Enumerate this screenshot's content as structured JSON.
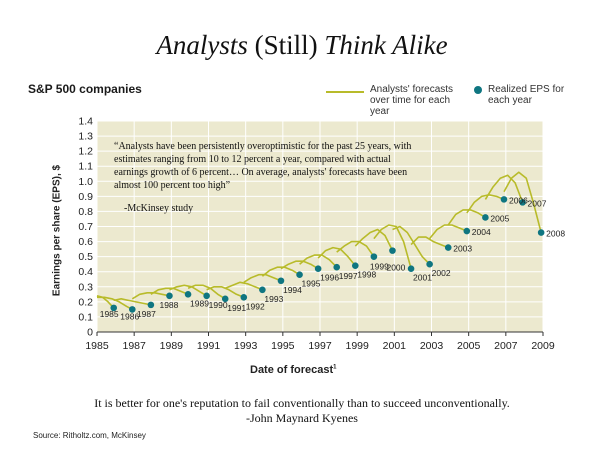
{
  "title": {
    "italic_1": "Analysts",
    "plain": " (Still) ",
    "italic_2": "Think Alike"
  },
  "subtitle": "S&P 500 companies",
  "legend": {
    "line_label": "Analysts' forecasts over time for each year",
    "dot_label": "Realized EPS for each year"
  },
  "quote": "“Analysts have been persistently overoptimistic for the past 25 years, with estimates ranging from 10 to 12 percent a year, compared with actual earnings growth of 6 percent… On average, analysts' forecasts have been almost 100 percent too high”",
  "quote_attribution": "-McKinsey study",
  "bottom_quote": "It is better for one's reputation to fail conventionally than to succeed unconventionally.",
  "bottom_attribution": "-John Maynard Kyenes",
  "source": "Source: Ritholtz.com, McKinsey",
  "chart_data": {
    "type": "line",
    "xlabel": "Date of forecast",
    "xlabel_superscript": "1",
    "ylabel": "Earnings per share (EPS), $",
    "xlim": [
      1985,
      2009
    ],
    "ylim": [
      0,
      1.4
    ],
    "x_ticks": [
      1985,
      1987,
      1989,
      1991,
      1993,
      1995,
      1997,
      1999,
      2001,
      2003,
      2005,
      2007,
      2009
    ],
    "y_ticks": [
      0,
      0.1,
      0.2,
      0.3,
      0.4,
      0.5,
      0.6,
      0.7,
      0.8,
      0.9,
      1.0,
      1.1,
      1.2,
      1.3,
      1.4
    ],
    "colors": {
      "forecast_line": "#b8bb2a",
      "realized_dot": "#0f7681",
      "plot_bg": "#ece9cf",
      "grid": "#ffffff"
    },
    "grid": true,
    "realized_eps": [
      {
        "year": "1985",
        "x": 1985.9,
        "y": 0.16
      },
      {
        "year": "1986",
        "x": 1986.9,
        "y": 0.15
      },
      {
        "year": "1987",
        "x": 1987.9,
        "y": 0.18
      },
      {
        "year": "1988",
        "x": 1988.9,
        "y": 0.24
      },
      {
        "year": "1989",
        "x": 1989.9,
        "y": 0.25
      },
      {
        "year": "1990",
        "x": 1990.9,
        "y": 0.24
      },
      {
        "year": "1991",
        "x": 1991.9,
        "y": 0.22
      },
      {
        "year": "1992",
        "x": 1992.9,
        "y": 0.23
      },
      {
        "year": "1993",
        "x": 1993.9,
        "y": 0.28
      },
      {
        "year": "1994",
        "x": 1994.9,
        "y": 0.34
      },
      {
        "year": "1995",
        "x": 1995.9,
        "y": 0.38
      },
      {
        "year": "1996",
        "x": 1996.9,
        "y": 0.42
      },
      {
        "year": "1997",
        "x": 1997.9,
        "y": 0.43
      },
      {
        "year": "1998",
        "x": 1998.9,
        "y": 0.44
      },
      {
        "year": "1999",
        "x": 1999.9,
        "y": 0.5
      },
      {
        "year": "2000",
        "x": 2000.9,
        "y": 0.54
      },
      {
        "year": "2001",
        "x": 2001.9,
        "y": 0.42
      },
      {
        "year": "2002",
        "x": 2002.9,
        "y": 0.45
      },
      {
        "year": "2003",
        "x": 2003.9,
        "y": 0.56
      },
      {
        "year": "2004",
        "x": 2004.9,
        "y": 0.67
      },
      {
        "year": "2005",
        "x": 2005.9,
        "y": 0.76
      },
      {
        "year": "2006",
        "x": 2006.9,
        "y": 0.88
      },
      {
        "year": "2007",
        "x": 2007.9,
        "y": 0.86
      },
      {
        "year": "2008",
        "x": 2008.9,
        "y": 0.66
      }
    ],
    "forecasts": [
      {
        "target_year": "1985",
        "points": [
          [
            1985.0,
            0.24
          ],
          [
            1985.3,
            0.23
          ],
          [
            1985.6,
            0.2
          ],
          [
            1985.9,
            0.16
          ]
        ]
      },
      {
        "target_year": "1986",
        "points": [
          [
            1985.0,
            0.23
          ],
          [
            1985.4,
            0.23
          ],
          [
            1985.8,
            0.22
          ],
          [
            1986.2,
            0.2
          ],
          [
            1986.6,
            0.17
          ],
          [
            1986.9,
            0.15
          ]
        ]
      },
      {
        "target_year": "1987",
        "points": [
          [
            1985.9,
            0.21
          ],
          [
            1986.3,
            0.22
          ],
          [
            1986.7,
            0.21
          ],
          [
            1987.1,
            0.2
          ],
          [
            1987.5,
            0.19
          ],
          [
            1987.9,
            0.18
          ]
        ]
      },
      {
        "target_year": "1988",
        "points": [
          [
            1986.9,
            0.22
          ],
          [
            1987.3,
            0.25
          ],
          [
            1987.7,
            0.26
          ],
          [
            1988.1,
            0.26
          ],
          [
            1988.5,
            0.25
          ],
          [
            1988.9,
            0.24
          ]
        ]
      },
      {
        "target_year": "1989",
        "points": [
          [
            1987.9,
            0.25
          ],
          [
            1988.3,
            0.28
          ],
          [
            1988.7,
            0.29
          ],
          [
            1989.1,
            0.29
          ],
          [
            1989.5,
            0.27
          ],
          [
            1989.9,
            0.25
          ]
        ]
      },
      {
        "target_year": "1990",
        "points": [
          [
            1988.9,
            0.28
          ],
          [
            1989.3,
            0.3
          ],
          [
            1989.7,
            0.31
          ],
          [
            1990.1,
            0.3
          ],
          [
            1990.5,
            0.27
          ],
          [
            1990.9,
            0.24
          ]
        ]
      },
      {
        "target_year": "1991",
        "points": [
          [
            1989.9,
            0.29
          ],
          [
            1990.3,
            0.31
          ],
          [
            1990.7,
            0.31
          ],
          [
            1991.1,
            0.29
          ],
          [
            1991.5,
            0.25
          ],
          [
            1991.9,
            0.22
          ]
        ]
      },
      {
        "target_year": "1992",
        "points": [
          [
            1990.9,
            0.28
          ],
          [
            1991.3,
            0.3
          ],
          [
            1991.7,
            0.3
          ],
          [
            1992.1,
            0.28
          ],
          [
            1992.5,
            0.25
          ],
          [
            1992.9,
            0.23
          ]
        ]
      },
      {
        "target_year": "1993",
        "points": [
          [
            1991.9,
            0.29
          ],
          [
            1992.3,
            0.31
          ],
          [
            1992.7,
            0.33
          ],
          [
            1993.1,
            0.32
          ],
          [
            1993.5,
            0.3
          ],
          [
            1993.9,
            0.28
          ]
        ]
      },
      {
        "target_year": "1994",
        "points": [
          [
            1992.9,
            0.33
          ],
          [
            1993.3,
            0.36
          ],
          [
            1993.7,
            0.38
          ],
          [
            1994.1,
            0.38
          ],
          [
            1994.5,
            0.36
          ],
          [
            1994.9,
            0.34
          ]
        ]
      },
      {
        "target_year": "1995",
        "points": [
          [
            1993.9,
            0.37
          ],
          [
            1994.3,
            0.41
          ],
          [
            1994.7,
            0.43
          ],
          [
            1995.1,
            0.43
          ],
          [
            1995.5,
            0.41
          ],
          [
            1995.9,
            0.38
          ]
        ]
      },
      {
        "target_year": "1996",
        "points": [
          [
            1994.9,
            0.42
          ],
          [
            1995.3,
            0.45
          ],
          [
            1995.7,
            0.47
          ],
          [
            1996.1,
            0.47
          ],
          [
            1996.5,
            0.45
          ],
          [
            1996.9,
            0.42
          ]
        ]
      },
      {
        "target_year": "1997",
        "points": [
          [
            1995.9,
            0.45
          ],
          [
            1996.3,
            0.49
          ],
          [
            1996.7,
            0.51
          ],
          [
            1997.1,
            0.51
          ],
          [
            1997.5,
            0.48
          ],
          [
            1997.9,
            0.43
          ]
        ]
      },
      {
        "target_year": "1998",
        "points": [
          [
            1996.9,
            0.49
          ],
          [
            1997.3,
            0.54
          ],
          [
            1997.7,
            0.56
          ],
          [
            1998.1,
            0.55
          ],
          [
            1998.5,
            0.5
          ],
          [
            1998.9,
            0.44
          ]
        ]
      },
      {
        "target_year": "1999",
        "points": [
          [
            1997.9,
            0.53
          ],
          [
            1998.3,
            0.57
          ],
          [
            1998.7,
            0.6
          ],
          [
            1999.1,
            0.6
          ],
          [
            1999.5,
            0.57
          ],
          [
            1999.9,
            0.5
          ]
        ]
      },
      {
        "target_year": "2000",
        "points": [
          [
            1998.9,
            0.57
          ],
          [
            1999.3,
            0.62
          ],
          [
            1999.7,
            0.66
          ],
          [
            2000.1,
            0.68
          ],
          [
            2000.5,
            0.64
          ],
          [
            2000.9,
            0.54
          ]
        ]
      },
      {
        "target_year": "2001",
        "points": [
          [
            1999.9,
            0.62
          ],
          [
            2000.3,
            0.68
          ],
          [
            2000.7,
            0.71
          ],
          [
            2001.1,
            0.7
          ],
          [
            2001.5,
            0.6
          ],
          [
            2001.9,
            0.42
          ]
        ]
      },
      {
        "target_year": "2002",
        "points": [
          [
            2000.9,
            0.68
          ],
          [
            2001.3,
            0.7
          ],
          [
            2001.7,
            0.66
          ],
          [
            2002.1,
            0.58
          ],
          [
            2002.5,
            0.5
          ],
          [
            2002.9,
            0.45
          ]
        ]
      },
      {
        "target_year": "2003",
        "points": [
          [
            2001.9,
            0.58
          ],
          [
            2002.3,
            0.63
          ],
          [
            2002.7,
            0.63
          ],
          [
            2003.1,
            0.6
          ],
          [
            2003.5,
            0.58
          ],
          [
            2003.9,
            0.56
          ]
        ]
      },
      {
        "target_year": "2004",
        "points": [
          [
            2002.9,
            0.62
          ],
          [
            2003.3,
            0.68
          ],
          [
            2003.7,
            0.71
          ],
          [
            2004.1,
            0.71
          ],
          [
            2004.5,
            0.69
          ],
          [
            2004.9,
            0.67
          ]
        ]
      },
      {
        "target_year": "2005",
        "points": [
          [
            2003.9,
            0.71
          ],
          [
            2004.3,
            0.78
          ],
          [
            2004.7,
            0.81
          ],
          [
            2005.1,
            0.81
          ],
          [
            2005.5,
            0.79
          ],
          [
            2005.9,
            0.76
          ]
        ]
      },
      {
        "target_year": "2006",
        "points": [
          [
            2004.9,
            0.79
          ],
          [
            2005.3,
            0.86
          ],
          [
            2005.7,
            0.9
          ],
          [
            2006.1,
            0.91
          ],
          [
            2006.5,
            0.9
          ],
          [
            2006.9,
            0.88
          ]
        ]
      },
      {
        "target_year": "2007",
        "points": [
          [
            2005.9,
            0.88
          ],
          [
            2006.3,
            0.96
          ],
          [
            2006.7,
            1.02
          ],
          [
            2007.1,
            1.04
          ],
          [
            2007.5,
            0.99
          ],
          [
            2007.9,
            0.86
          ]
        ]
      },
      {
        "target_year": "2008",
        "points": [
          [
            2006.9,
            0.93
          ],
          [
            2007.3,
            1.02
          ],
          [
            2007.7,
            1.06
          ],
          [
            2008.1,
            1.02
          ],
          [
            2008.5,
            0.85
          ],
          [
            2008.9,
            0.66
          ]
        ]
      }
    ]
  }
}
